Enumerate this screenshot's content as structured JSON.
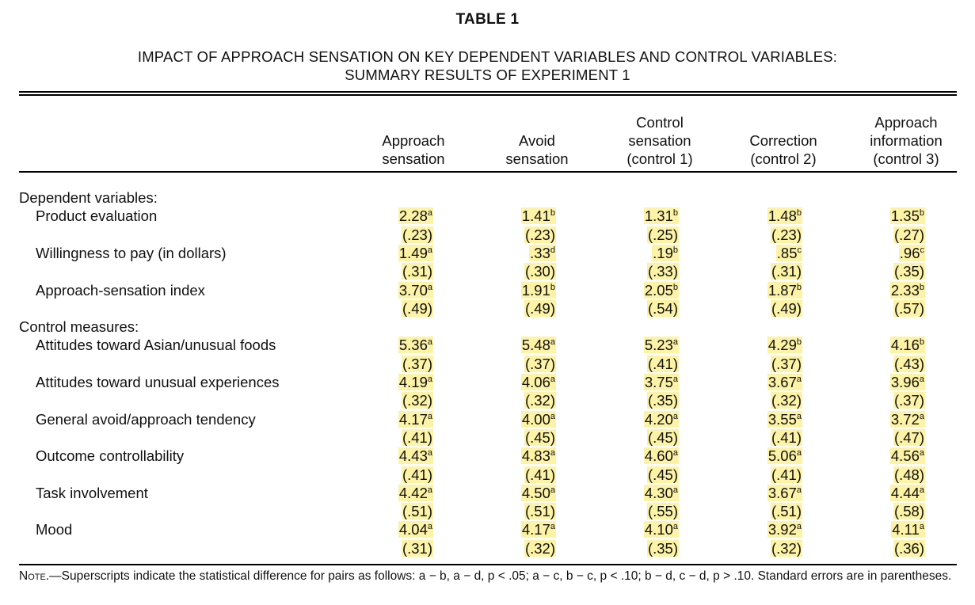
{
  "table": {
    "title": "TABLE 1",
    "subtitle_line1": "IMPACT OF APPROACH SENSATION ON KEY DEPENDENT VARIABLES AND CONTROL VARIABLES:",
    "subtitle_line2": "SUMMARY RESULTS OF EXPERIMENT 1",
    "columns": [
      {
        "lines": [
          "Approach",
          "sensation"
        ]
      },
      {
        "lines": [
          "Avoid",
          "sensation"
        ]
      },
      {
        "lines": [
          "Control",
          "sensation",
          "(control 1)"
        ]
      },
      {
        "lines": [
          "Correction",
          "(control 2)"
        ]
      },
      {
        "lines": [
          "Approach",
          "information",
          "(control 3)"
        ]
      }
    ],
    "sections": [
      {
        "label": "Dependent variables:",
        "rows": [
          {
            "label": "Product evaluation",
            "means": [
              {
                "v": "2.28",
                "s": "a"
              },
              {
                "v": "1.41",
                "s": "b"
              },
              {
                "v": "1.31",
                "s": "b"
              },
              {
                "v": "1.48",
                "s": "b"
              },
              {
                "v": "1.35",
                "s": "b"
              }
            ],
            "ses": [
              "(.23)",
              "(.23)",
              "(.25)",
              "(.23)",
              "(.27)"
            ]
          },
          {
            "label": "Willingness to pay (in dollars)",
            "means": [
              {
                "v": "1.49",
                "s": "a"
              },
              {
                "v": ".33",
                "s": "d"
              },
              {
                "v": ".19",
                "s": "b"
              },
              {
                "v": ".85",
                "s": "c"
              },
              {
                "v": ".96",
                "s": "c"
              }
            ],
            "ses": [
              "(.31)",
              "(.30)",
              "(.33)",
              "(.31)",
              "(.35)"
            ]
          },
          {
            "label": "Approach-sensation index",
            "means": [
              {
                "v": "3.70",
                "s": "a"
              },
              {
                "v": "1.91",
                "s": "b"
              },
              {
                "v": "2.05",
                "s": "b"
              },
              {
                "v": "1.87",
                "s": "b"
              },
              {
                "v": "2.33",
                "s": "b"
              }
            ],
            "ses": [
              "(.49)",
              "(.49)",
              "(.54)",
              "(.49)",
              "(.57)"
            ]
          }
        ]
      },
      {
        "label": "Control measures:",
        "rows": [
          {
            "label": "Attitudes toward Asian/unusual foods",
            "means": [
              {
                "v": "5.36",
                "s": "a"
              },
              {
                "v": "5.48",
                "s": "a"
              },
              {
                "v": "5.23",
                "s": "a"
              },
              {
                "v": "4.29",
                "s": "b"
              },
              {
                "v": "4.16",
                "s": "b"
              }
            ],
            "ses": [
              "(.37)",
              "(.37)",
              "(.41)",
              "(.37)",
              "(.43)"
            ]
          },
          {
            "label": "Attitudes toward unusual experiences",
            "means": [
              {
                "v": "4.19",
                "s": "a"
              },
              {
                "v": "4.06",
                "s": "a"
              },
              {
                "v": "3.75",
                "s": "a"
              },
              {
                "v": "3.67",
                "s": "a"
              },
              {
                "v": "3.96",
                "s": "a"
              }
            ],
            "ses": [
              "(.32)",
              "(.32)",
              "(.35)",
              "(.32)",
              "(.37)"
            ]
          },
          {
            "label": "General avoid/approach tendency",
            "means": [
              {
                "v": "4.17",
                "s": "a"
              },
              {
                "v": "4.00",
                "s": "a"
              },
              {
                "v": "4.20",
                "s": "a"
              },
              {
                "v": "3.55",
                "s": "a"
              },
              {
                "v": "3.72",
                "s": "a"
              }
            ],
            "ses": [
              "(.41)",
              "(.45)",
              "(.45)",
              "(.41)",
              "(.47)"
            ]
          },
          {
            "label": "Outcome controllability",
            "means": [
              {
                "v": "4.43",
                "s": "a"
              },
              {
                "v": "4.83",
                "s": "a"
              },
              {
                "v": "4.60",
                "s": "a"
              },
              {
                "v": "5.06",
                "s": "a"
              },
              {
                "v": "4.56",
                "s": "a"
              }
            ],
            "ses": [
              "(.41)",
              "(.41)",
              "(.45)",
              "(.41)",
              "(.48)"
            ]
          },
          {
            "label": "Task involvement",
            "means": [
              {
                "v": "4.42",
                "s": "a"
              },
              {
                "v": "4.50",
                "s": "a"
              },
              {
                "v": "4.30",
                "s": "a"
              },
              {
                "v": "3.67",
                "s": "a"
              },
              {
                "v": "4.44",
                "s": "a"
              }
            ],
            "ses": [
              "(.51)",
              "(.51)",
              "(.55)",
              "(.51)",
              "(.58)"
            ]
          },
          {
            "label": "Mood",
            "means": [
              {
                "v": "4.04",
                "s": "a"
              },
              {
                "v": "4.17",
                "s": "a"
              },
              {
                "v": "4.10",
                "s": "a"
              },
              {
                "v": "3.92",
                "s": "a"
              },
              {
                "v": "4.11",
                "s": "a"
              }
            ],
            "ses": [
              "(.31)",
              "(.32)",
              "(.35)",
              "(.32)",
              "(.36)"
            ]
          }
        ]
      }
    ],
    "note_label": "Note",
    "note_text": ".—Superscripts indicate the statistical difference for pairs as follows: a − b, a − d, p < .05; a − c, b − c, p < .10; b − d, c − d, p > .10. Standard errors are in parentheses.",
    "highlight_color": "#fdf3a6"
  }
}
